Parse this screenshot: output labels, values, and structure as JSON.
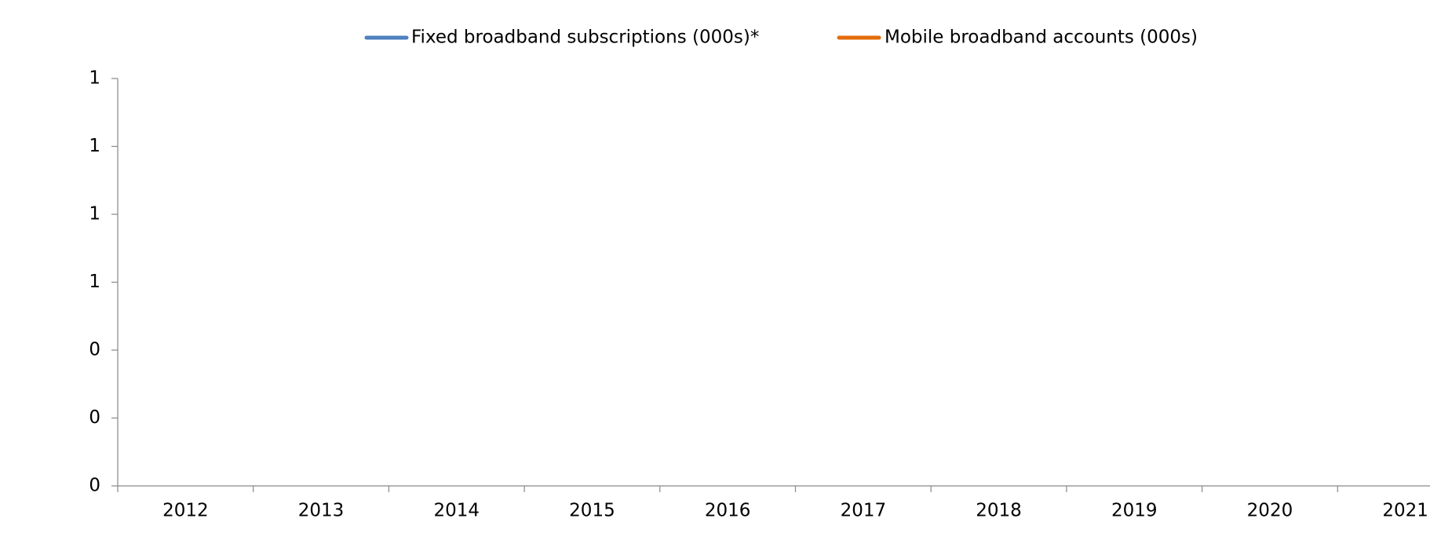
{
  "chart_data": {
    "type": "line",
    "categories": [
      "2012",
      "2013",
      "2014",
      "2015",
      "2016",
      "2017",
      "2018",
      "2019",
      "2020",
      "2021"
    ],
    "series": [
      {
        "name": "Fixed broadband subscriptions (000s)*",
        "color": "#4f81bd",
        "values": [
          null,
          null,
          null,
          null,
          null,
          null,
          null,
          null,
          null,
          null
        ]
      },
      {
        "name": "Mobile broadband accounts (000s)",
        "color": "#e46c0a",
        "values": [
          null,
          null,
          null,
          null,
          null,
          null,
          null,
          null,
          null,
          null
        ]
      }
    ],
    "ylim": [
      0,
      1.2
    ],
    "yticks": [
      0,
      {
        "value": 0.2,
        "label": "0"
      },
      {
        "value": 0.4,
        "label": "0"
      },
      {
        "value": 0.6,
        "label": "1"
      },
      {
        "value": 0.8,
        "label": "1"
      },
      1,
      {
        "value": 1.2,
        "label": "1"
      }
    ],
    "legend": "top"
  }
}
